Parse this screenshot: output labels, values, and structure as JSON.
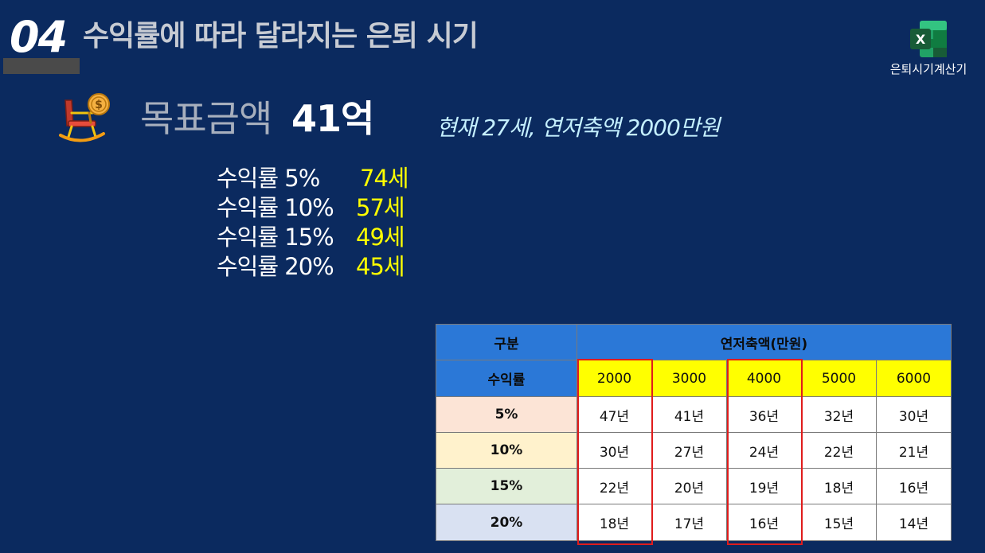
{
  "header": {
    "slide_number": "04",
    "title": "수익률에 따라 달라지는 은퇴 시기"
  },
  "excel_shortcut": {
    "label": "은퇴시기계산기",
    "icon": "excel-icon",
    "colors": {
      "dark": "#107c41",
      "mid": "#21a366",
      "light": "#33c481",
      "badge": "#185c37"
    }
  },
  "goal": {
    "icon": "rocking-chair-coin-icon",
    "label": "목표금액",
    "value": "41억",
    "current_info": "현재 27세, 연저축액 2000만원"
  },
  "rate_summary": [
    {
      "name": "수익률 5%",
      "age": "74세"
    },
    {
      "name": "수익률 10%",
      "age": "57세"
    },
    {
      "name": "수익률 15%",
      "age": "49세"
    },
    {
      "name": "수익률 20%",
      "age": "45세"
    }
  ],
  "table": {
    "corner_top": "구분",
    "corner_bottom": "수익률",
    "group_header": "연저축액(만원)",
    "columns": [
      "2000",
      "3000",
      "4000",
      "5000",
      "6000"
    ],
    "rows": [
      {
        "rate": "5%",
        "values": [
          "47년",
          "41년",
          "36년",
          "32년",
          "30년"
        ]
      },
      {
        "rate": "10%",
        "values": [
          "30년",
          "27년",
          "24년",
          "22년",
          "21년"
        ]
      },
      {
        "rate": "15%",
        "values": [
          "22년",
          "20년",
          "19년",
          "18년",
          "16년"
        ]
      },
      {
        "rate": "20%",
        "values": [
          "18년",
          "17년",
          "16년",
          "15년",
          "14년"
        ]
      }
    ],
    "highlighted_columns": [
      "2000",
      "4000"
    ]
  },
  "colors": {
    "background": "#0b2a5f",
    "accent_yellow": "#ffff00",
    "header_blue": "#2b78d7",
    "highlight_red": "#e01c1c"
  }
}
